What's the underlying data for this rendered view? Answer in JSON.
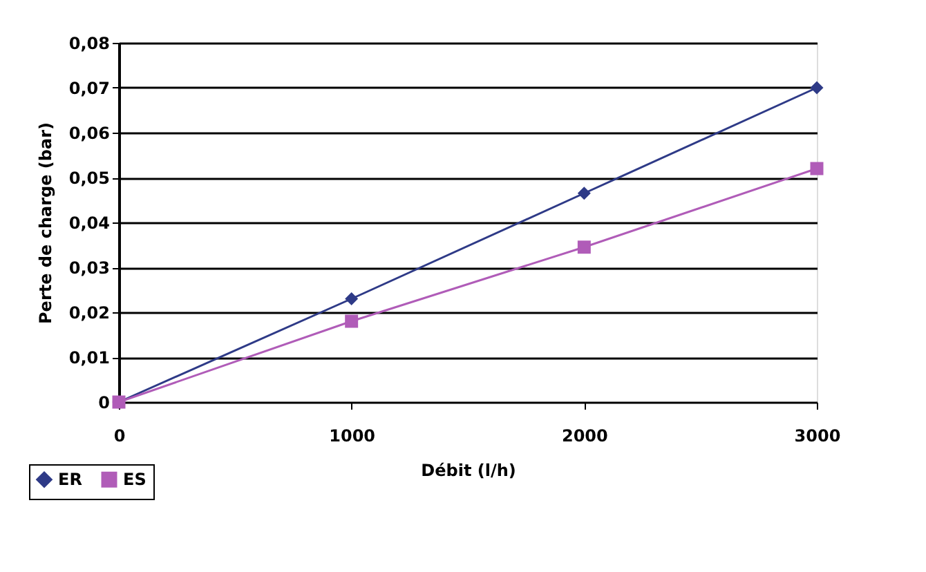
{
  "chart_data": {
    "type": "line",
    "xlabel": "Débit (l/h)",
    "ylabel": "Perte de charge (bar)",
    "x": [
      0,
      1000,
      2000,
      3000
    ],
    "series": [
      {
        "name": "ER",
        "color": "#2e3a87",
        "marker": "diamond",
        "values": [
          0,
          0.023,
          0.0465,
          0.07
        ]
      },
      {
        "name": "ES",
        "color": "#b05cb8",
        "marker": "square",
        "values": [
          0,
          0.018,
          0.0345,
          0.052
        ]
      }
    ],
    "xlim": [
      0,
      3000
    ],
    "xticks": [
      0,
      1000,
      2000,
      3000
    ],
    "ylim": [
      0,
      0.08
    ],
    "yticks": [
      0,
      {
        "value": 0.01,
        "label": "0,01"
      },
      {
        "value": 0.02,
        "label": "0,02"
      },
      {
        "value": 0.03,
        "label": "0,03"
      },
      {
        "value": 0.04,
        "label": "0,04"
      },
      {
        "value": 0.05,
        "label": "0,05"
      },
      {
        "value": 0.06,
        "label": "0,06"
      },
      {
        "value": 0.07,
        "label": "0,07"
      },
      {
        "value": 0.08,
        "label": "0,08"
      }
    ],
    "grid": "y",
    "legend": "bottom left",
    "line_style": "solid"
  }
}
